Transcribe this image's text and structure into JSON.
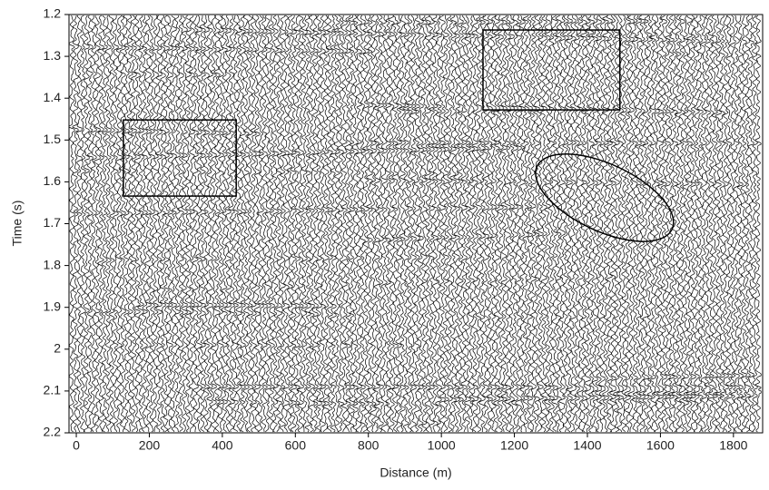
{
  "chart_data": {
    "type": "wiggle",
    "x_label": "Distance (m)",
    "y_label": "Time (s)",
    "xlim": [
      -20,
      1880
    ],
    "xticks": [
      0,
      200,
      400,
      600,
      800,
      1000,
      1200,
      1400,
      1600,
      1800
    ],
    "ylim": [
      1.2,
      2.2
    ],
    "yticks": [
      1.2,
      1.3,
      1.4,
      1.5,
      1.6,
      1.7,
      1.8,
      1.9,
      2,
      2.1,
      2.2
    ],
    "y_inverted": true,
    "trace_color": "#000000",
    "boxes": [
      {
        "x": [
          129,
          438
        ],
        "y": [
          1.452,
          1.634
        ]
      },
      {
        "x": [
          1114,
          1489
        ],
        "y": [
          1.237,
          1.428
        ]
      }
    ],
    "ellipses": [
      {
        "center": [
          1447,
          1.638
        ],
        "x_radius": 204,
        "y_radius": 0.08,
        "angle": 25
      }
    ]
  }
}
